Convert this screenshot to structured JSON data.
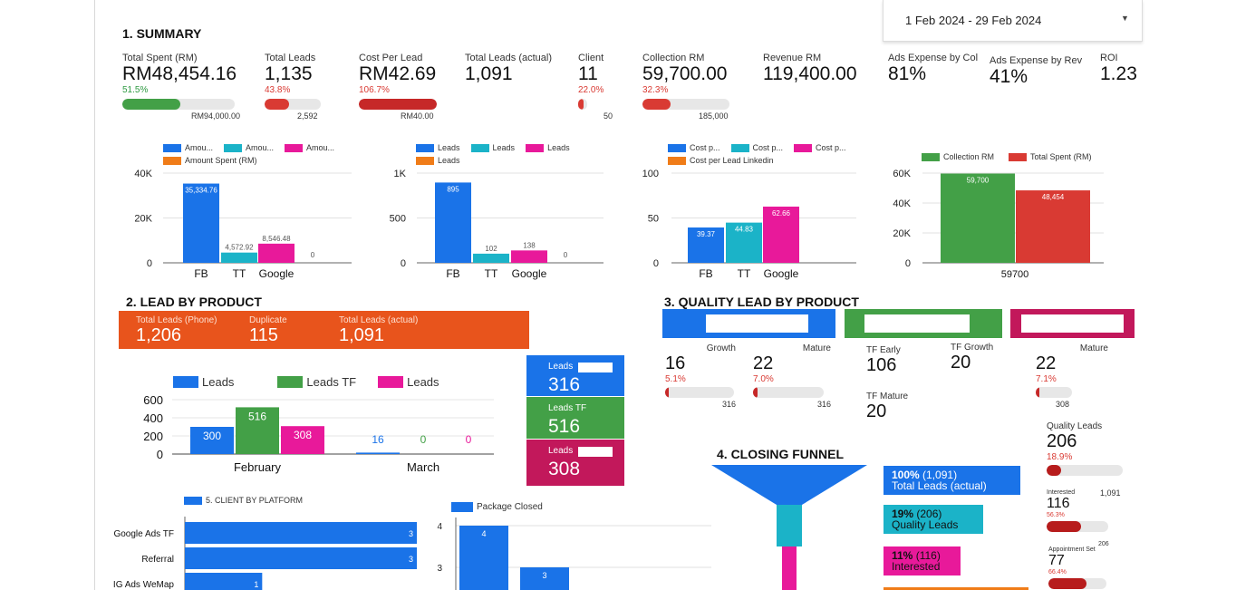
{
  "date_range": "1 Feb 2024 - 29 Feb 2024",
  "colors": {
    "blue": "#1a73e8",
    "teal": "#1bb3c8",
    "pink": "#e8199a",
    "orange": "#f07c18",
    "green": "#43a047",
    "red": "#d93a33"
  },
  "summary": {
    "title": "1. SUMMARY",
    "kpis": {
      "spent": {
        "label": "Total Spent (RM)",
        "value": "RM48,454.16",
        "pct": "51.5%",
        "target": "RM94,000.00",
        "progress": 0.515
      },
      "leads": {
        "label": "Total Leads",
        "value": "1,135",
        "pct": "43.8%",
        "target": "2,592",
        "progress": 0.438
      },
      "cpl": {
        "label": "Cost Per Lead",
        "value": "RM42.69",
        "pct": "106.7%",
        "target": "RM40.00",
        "progress": 1.0
      },
      "leads_actual": {
        "label": "Total Leads (actual)",
        "value": "1,091"
      },
      "client": {
        "label": "Client",
        "value": "11",
        "pct": "22.0%",
        "target": "50",
        "progress": 0.22
      },
      "collection": {
        "label": "Collection RM",
        "value": "59,700.00",
        "pct": "32.3%",
        "target": "185,000",
        "progress": 0.323
      },
      "revenue": {
        "label": "Revenue RM",
        "value": "119,400.00"
      },
      "ads_col": {
        "label": "Ads Expense by Col",
        "value": "81%"
      },
      "ads_rev": {
        "label": "Ads Expense by Rev",
        "value": "41%"
      },
      "roi": {
        "label": "ROI",
        "value": "1.23"
      }
    }
  },
  "charts": {
    "amount": {
      "legend": [
        "Amou...",
        "Amou...",
        "Amou...",
        "Amount Spent (RM)"
      ]
    },
    "leads": {
      "legend": [
        "Leads",
        "Leads",
        "Leads",
        "Leads"
      ]
    },
    "cpl": {
      "legend": [
        "Cost p...",
        "Cost p...",
        "Cost p...",
        "Cost per Lead Linkedin"
      ]
    },
    "colspent": {
      "legend": [
        "Collection RM",
        "Total Spent (RM)"
      ]
    },
    "product": {
      "legend": [
        "Leads",
        "Leads TF",
        "Leads"
      ]
    },
    "client": {
      "legend": "5. CLIENT BY PLATFORM"
    },
    "package": {
      "legend": "Package Closed"
    }
  },
  "chart_data": [
    {
      "id": "amount",
      "type": "bar",
      "categories": [
        "FB",
        "TT",
        "Google",
        ""
      ],
      "values": [
        35334.76,
        4572.92,
        8546.48,
        0
      ],
      "labels": [
        "35,334.76",
        "4,572.92",
        "8,546.48",
        "0"
      ],
      "ylim": [
        0,
        40000
      ],
      "yticks": [
        "0",
        "20K",
        "40K"
      ]
    },
    {
      "id": "leads",
      "type": "bar",
      "categories": [
        "FB",
        "TT",
        "Google",
        ""
      ],
      "values": [
        895,
        102,
        138,
        0
      ],
      "labels": [
        "895",
        "102",
        "138",
        "0"
      ],
      "ylim": [
        0,
        1000
      ],
      "yticks": [
        "0",
        "500",
        "1K"
      ]
    },
    {
      "id": "cpl",
      "type": "bar",
      "categories": [
        "FB",
        "TT",
        "Google",
        ""
      ],
      "values": [
        39.37,
        44.83,
        62.66,
        0
      ],
      "labels": [
        "39.37",
        "44.83",
        "62.66",
        ""
      ],
      "ylim": [
        0,
        100
      ],
      "yticks": [
        "0",
        "50",
        "100"
      ]
    },
    {
      "id": "colspent",
      "type": "bar",
      "categories": [
        "59700"
      ],
      "series": [
        {
          "name": "Collection RM",
          "values": [
            59700
          ],
          "labels": [
            "59,700"
          ]
        },
        {
          "name": "Total Spent (RM)",
          "values": [
            48454
          ],
          "labels": [
            "48,454"
          ]
        }
      ],
      "ylim": [
        0,
        60000
      ],
      "yticks": [
        "0",
        "20K",
        "40K",
        "60K"
      ]
    },
    {
      "id": "product",
      "type": "bar",
      "categories": [
        "February",
        "March"
      ],
      "series": [
        {
          "name": "Leads",
          "values": [
            300,
            16
          ],
          "labels": [
            "300",
            "16"
          ]
        },
        {
          "name": "Leads TF",
          "values": [
            516,
            0
          ],
          "labels": [
            "516",
            "0"
          ]
        },
        {
          "name": "Leads",
          "values": [
            308,
            0
          ],
          "labels": [
            "308",
            "0"
          ]
        }
      ],
      "ylim": [
        0,
        600
      ],
      "yticks": [
        "0",
        "200",
        "400",
        "600"
      ]
    },
    {
      "id": "client",
      "type": "bar",
      "orientation": "horizontal",
      "categories": [
        "Google Ads TF",
        "Referral",
        "IG Ads WeMap"
      ],
      "values": [
        3,
        3,
        1
      ],
      "labels": [
        "3",
        "3",
        "1"
      ],
      "xlim": [
        0,
        3
      ]
    },
    {
      "id": "package",
      "type": "bar",
      "categories": [
        "",
        ""
      ],
      "values": [
        4,
        3
      ],
      "labels": [
        "4",
        "3"
      ],
      "ylim": [
        0,
        4
      ],
      "yticks": [
        "3",
        "4"
      ]
    }
  ],
  "lead_by_product": {
    "title": "2. LEAD BY PRODUCT",
    "banner": [
      {
        "label": "Total Leads (Phone)",
        "value": "1,206"
      },
      {
        "label": "Duplicate",
        "value": "115"
      },
      {
        "label": "Total Leads (actual)",
        "value": "1,091"
      }
    ],
    "tiles": [
      {
        "label": "Leads",
        "value": "316"
      },
      {
        "label": "Leads TF",
        "value": "516"
      },
      {
        "label": "Leads",
        "value": "308"
      }
    ]
  },
  "quality": {
    "title": "3. QUALITY LEAD BY PRODUCT",
    "groups": [
      {
        "items": [
          {
            "label": "Growth",
            "value": "16",
            "pct": "5.1%",
            "target": "316",
            "progress": 0.051
          },
          {
            "label": "Mature",
            "value": "22",
            "pct": "7.0%",
            "target": "316",
            "progress": 0.07
          }
        ]
      },
      {
        "items": [
          {
            "label": "TF Early",
            "value": "106"
          },
          {
            "label": "TF Growth",
            "value": "20"
          },
          {
            "label": "TF Mature",
            "value": "20"
          }
        ]
      },
      {
        "items": [
          {
            "label": "Mature",
            "value": "22",
            "pct": "7.1%",
            "target": "308",
            "progress": 0.071
          }
        ]
      }
    ]
  },
  "side": [
    {
      "label": "Quality Leads",
      "value": "206",
      "pct": "18.9%",
      "target": "1,091",
      "progress": 0.189
    },
    {
      "label": "Interested",
      "value": "116",
      "pct": "56.3%",
      "target": "206",
      "progress": 0.563
    },
    {
      "label": "Appointment Set",
      "value": "77",
      "pct": "66.4%",
      "progress": 0.664
    }
  ],
  "funnel": {
    "title": "4. CLOSING FUNNEL",
    "stages": [
      {
        "pct": "100%",
        "count": "(1,091)",
        "label": "Total Leads (actual)"
      },
      {
        "pct": "19%",
        "count": "(206)",
        "label": "Quality Leads"
      },
      {
        "pct": "11%",
        "count": "(116)",
        "label": "Interested"
      }
    ]
  }
}
